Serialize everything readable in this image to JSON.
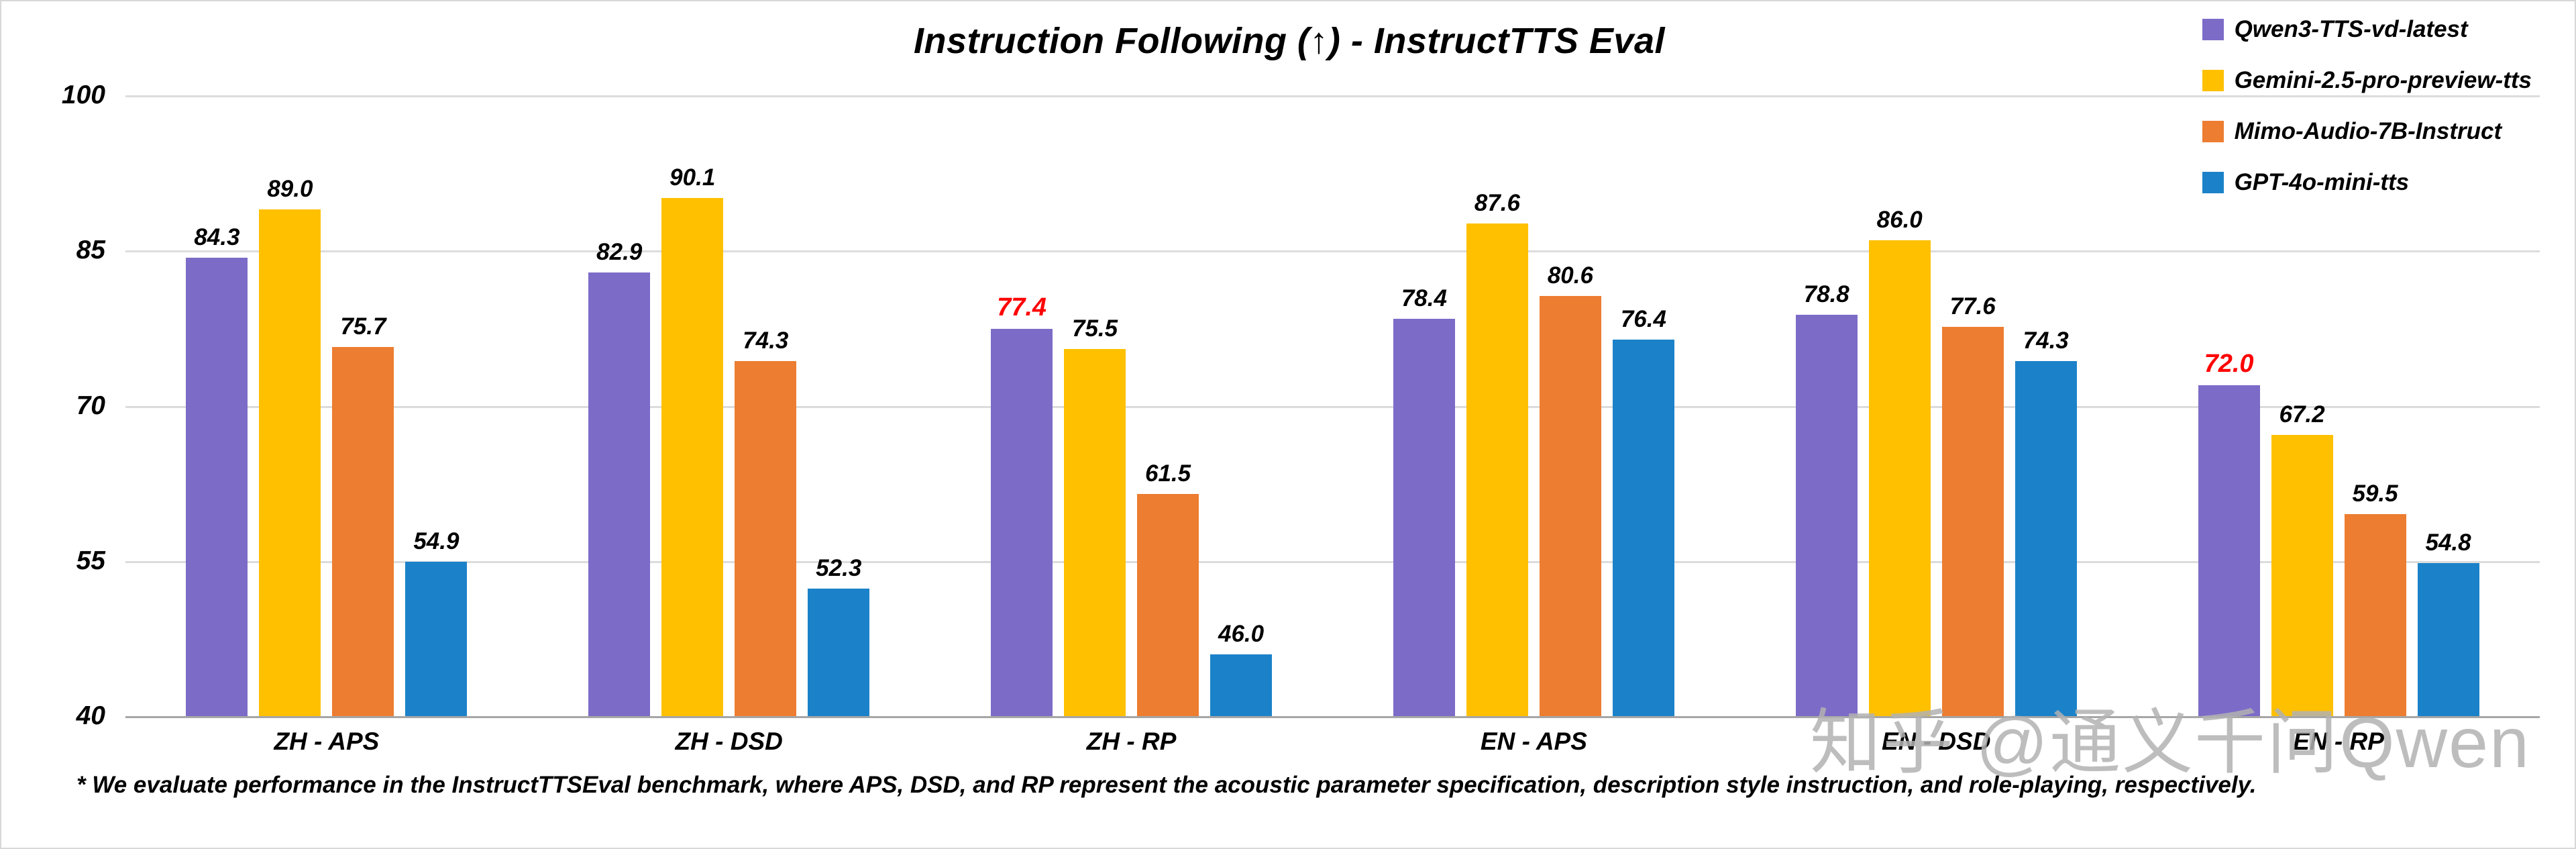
{
  "chart_data": {
    "type": "bar",
    "title": "Instruction Following (↑) - InstructTTS Eval",
    "categories": [
      "ZH - APS",
      "ZH - DSD",
      "ZH - RP",
      "EN - APS",
      "EN - DSD",
      "EN - RP"
    ],
    "series": [
      {
        "name": "Qwen3-TTS-vd-latest",
        "color": "#7D6BC8",
        "values": [
          84.3,
          82.9,
          77.4,
          78.4,
          78.8,
          72.0
        ],
        "highlight_indices": [
          2,
          5
        ]
      },
      {
        "name": "Gemini-2.5-pro-preview-tts",
        "color": "#FFC000",
        "values": [
          89.0,
          90.1,
          75.5,
          87.6,
          86.0,
          67.2
        ],
        "highlight_indices": []
      },
      {
        "name": "Mimo-Audio-7B-Instruct",
        "color": "#ED7D31",
        "values": [
          75.7,
          74.3,
          61.5,
          80.6,
          77.6,
          59.5
        ],
        "highlight_indices": []
      },
      {
        "name": "GPT-4o-mini-tts",
        "color": "#1B82C9",
        "values": [
          54.9,
          52.3,
          46.0,
          76.4,
          74.3,
          54.8
        ],
        "highlight_indices": []
      }
    ],
    "ylim": [
      40,
      100
    ],
    "yticks": [
      100,
      85,
      70,
      55,
      40
    ],
    "grid": true,
    "legend_position": "top-right",
    "highlight_color": "#FF0000",
    "footnote": "* We evaluate performance in the InstructTTSEval benchmark, where APS, DSD, and RP represent the acoustic parameter specification, description style instruction, and role-playing, respectively.",
    "watermark": "知乎 @通义千问Qwen"
  }
}
